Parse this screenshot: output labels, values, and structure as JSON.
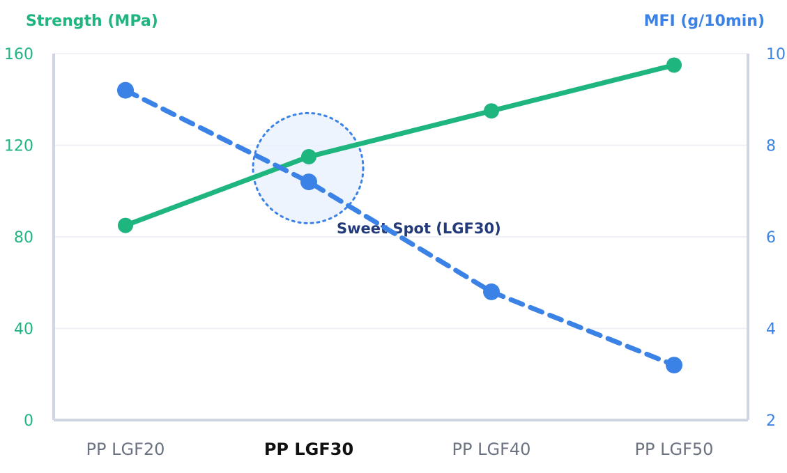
{
  "chart_data": {
    "type": "line",
    "categories": [
      "PP LGF20",
      "PP LGF30",
      "PP LGF40",
      "PP LGF50"
    ],
    "highlighted_category": "PP LGF30",
    "y_left": {
      "label": "Strength (MPa)",
      "ylim": [
        0,
        160
      ],
      "ticks": [
        0,
        40,
        80,
        120,
        160
      ],
      "color": "#1fb57f"
    },
    "y_right": {
      "label": "MFI (g/10min)",
      "ylim": [
        2,
        10
      ],
      "ticks": [
        2,
        4,
        6,
        8,
        10
      ],
      "color": "#3b82e6"
    },
    "series": [
      {
        "axis": "left",
        "color": "#1fb57f",
        "style": "solid",
        "values": [
          85,
          115,
          135,
          155
        ]
      },
      {
        "axis": "right",
        "color": "#3b82e6",
        "style": "dashed",
        "values": [
          9.2,
          7.2,
          4.8,
          3.2
        ]
      }
    ],
    "annotations": [
      {
        "text": "Sweet Spot (LGF30)",
        "category": "PP LGF30",
        "y_left": 110
      }
    ],
    "grid": true
  }
}
